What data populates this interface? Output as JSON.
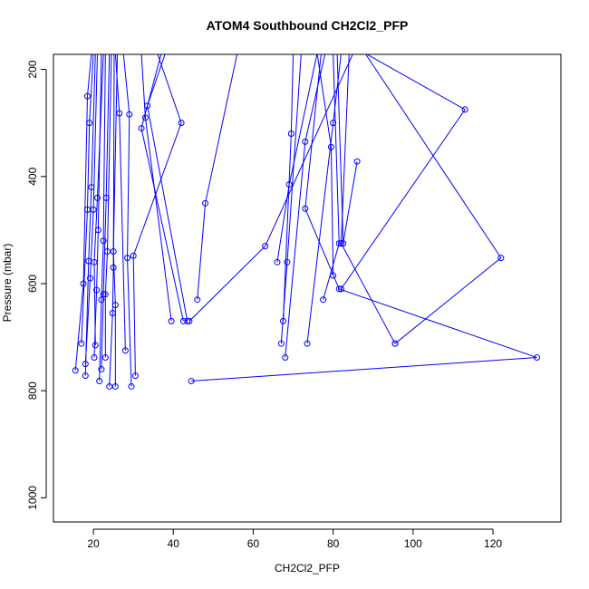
{
  "chart_data": {
    "type": "line",
    "title": "ATOM4 Southbound CH2Cl2_PFP",
    "xlabel": "CH2Cl2_PFP",
    "ylabel": "Pressure (mbar)",
    "xlim": [
      10,
      137
    ],
    "ylim": [
      1045,
      172
    ],
    "y_reversed": true,
    "x_ticks": [
      20,
      40,
      60,
      80,
      100,
      120
    ],
    "y_ticks": [
      200,
      400,
      600,
      800,
      1000
    ],
    "grid": false,
    "legend": "none",
    "line_color": "#0000ff",
    "series": [
      {
        "points": [
          [
            15.5,
            762
          ],
          [
            17.5,
            600
          ],
          [
            18.5,
            250
          ],
          [
            19.5,
            170
          ]
        ]
      },
      {
        "points": [
          [
            17.0,
            712
          ],
          [
            18.5,
            462
          ],
          [
            19.0,
            300
          ],
          [
            20.0,
            170
          ]
        ]
      },
      {
        "points": [
          [
            18.0,
            772
          ],
          [
            18.8,
            558
          ],
          [
            19.5,
            420
          ],
          [
            20.5,
            170
          ]
        ]
      },
      {
        "points": [
          [
            18.0,
            750
          ],
          [
            19.2,
            590
          ],
          [
            20.0,
            462
          ],
          [
            21.0,
            170
          ]
        ]
      },
      {
        "points": [
          [
            20.2,
            738
          ],
          [
            20.8,
            612
          ],
          [
            21.2,
            500
          ],
          [
            22.0,
            170
          ]
        ]
      },
      {
        "points": [
          [
            20.5,
            715
          ],
          [
            20.2,
            560
          ],
          [
            21.0,
            440
          ],
          [
            22.5,
            170
          ]
        ]
      },
      {
        "points": [
          [
            21.5,
            782
          ],
          [
            22.0,
            630
          ],
          [
            22.5,
            520
          ],
          [
            23.0,
            170
          ]
        ]
      },
      {
        "points": [
          [
            22.0,
            760
          ],
          [
            22.5,
            620
          ],
          [
            23.2,
            440
          ],
          [
            24.0,
            170
          ]
        ]
      },
      {
        "points": [
          [
            23.0,
            738
          ],
          [
            23.0,
            620
          ],
          [
            23.5,
            540
          ],
          [
            24.5,
            170
          ]
        ]
      },
      {
        "points": [
          [
            24.0,
            792
          ],
          [
            24.8,
            655
          ],
          [
            25.0,
            570
          ],
          [
            25.2,
            170
          ]
        ]
      },
      {
        "points": [
          [
            25.5,
            792
          ],
          [
            25.5,
            640
          ],
          [
            25.0,
            540
          ],
          [
            26.0,
            170
          ]
        ]
      },
      {
        "points": [
          [
            28.0,
            725
          ],
          [
            26.5,
            282
          ],
          [
            25.5,
            170
          ]
        ]
      },
      {
        "points": [
          [
            29.5,
            792
          ],
          [
            28.5,
            552
          ],
          [
            29.0,
            284
          ],
          [
            27.5,
            170
          ]
        ]
      },
      {
        "points": [
          [
            30.5,
            772
          ],
          [
            30.0,
            548
          ],
          [
            42.0,
            300
          ],
          [
            36.0,
            170
          ]
        ]
      },
      {
        "points": [
          [
            39.5,
            670
          ],
          [
            33.0,
            290
          ],
          [
            32.0,
            170
          ]
        ]
      },
      {
        "points": [
          [
            43.5,
            670
          ],
          [
            33.5,
            268
          ],
          [
            38.0,
            170
          ]
        ]
      },
      {
        "points": [
          [
            42.5,
            670
          ],
          [
            32.0,
            310
          ],
          [
            37.0,
            170
          ]
        ]
      },
      {
        "points": [
          [
            46.0,
            630
          ],
          [
            48.0,
            450
          ],
          [
            56.0,
            170
          ]
        ]
      },
      {
        "points": [
          [
            44.5,
            782
          ],
          [
            131.0,
            738
          ],
          [
            81.5,
            610
          ],
          [
            73.0,
            460
          ],
          [
            77.0,
            170
          ]
        ]
      },
      {
        "points": [
          [
            44.0,
            670
          ],
          [
            63.0,
            530
          ],
          [
            85.0,
            170
          ]
        ]
      },
      {
        "points": [
          [
            66.0,
            560
          ],
          [
            69.0,
            415
          ],
          [
            76.0,
            170
          ]
        ]
      },
      {
        "points": [
          [
            67.0,
            712
          ],
          [
            68.5,
            560
          ],
          [
            72.0,
            170
          ]
        ]
      },
      {
        "points": [
          [
            68.0,
            738
          ],
          [
            73.0,
            335
          ],
          [
            78.0,
            170
          ]
        ]
      },
      {
        "points": [
          [
            67.5,
            670
          ],
          [
            69.5,
            320
          ],
          [
            70.0,
            170
          ]
        ]
      },
      {
        "points": [
          [
            73.5,
            712
          ],
          [
            80.0,
            300
          ],
          [
            82.0,
            170
          ]
        ]
      },
      {
        "points": [
          [
            77.5,
            630
          ],
          [
            81.5,
            525
          ],
          [
            80.0,
            170
          ]
        ]
      },
      {
        "points": [
          [
            80.0,
            585
          ],
          [
            79.5,
            345
          ],
          [
            76.0,
            170
          ]
        ]
      },
      {
        "points": [
          [
            95.5,
            712
          ],
          [
            82.0,
            525
          ],
          [
            84.0,
            170
          ]
        ]
      },
      {
        "points": [
          [
            95.5,
            712
          ],
          [
            122.0,
            552
          ],
          [
            88.0,
            170
          ]
        ]
      },
      {
        "points": [
          [
            82.0,
            610
          ],
          [
            113.0,
            275
          ],
          [
            88.0,
            170
          ]
        ]
      },
      {
        "points": [
          [
            86.0,
            372
          ],
          [
            82.5,
            525
          ],
          [
            81.0,
            170
          ]
        ]
      }
    ]
  }
}
